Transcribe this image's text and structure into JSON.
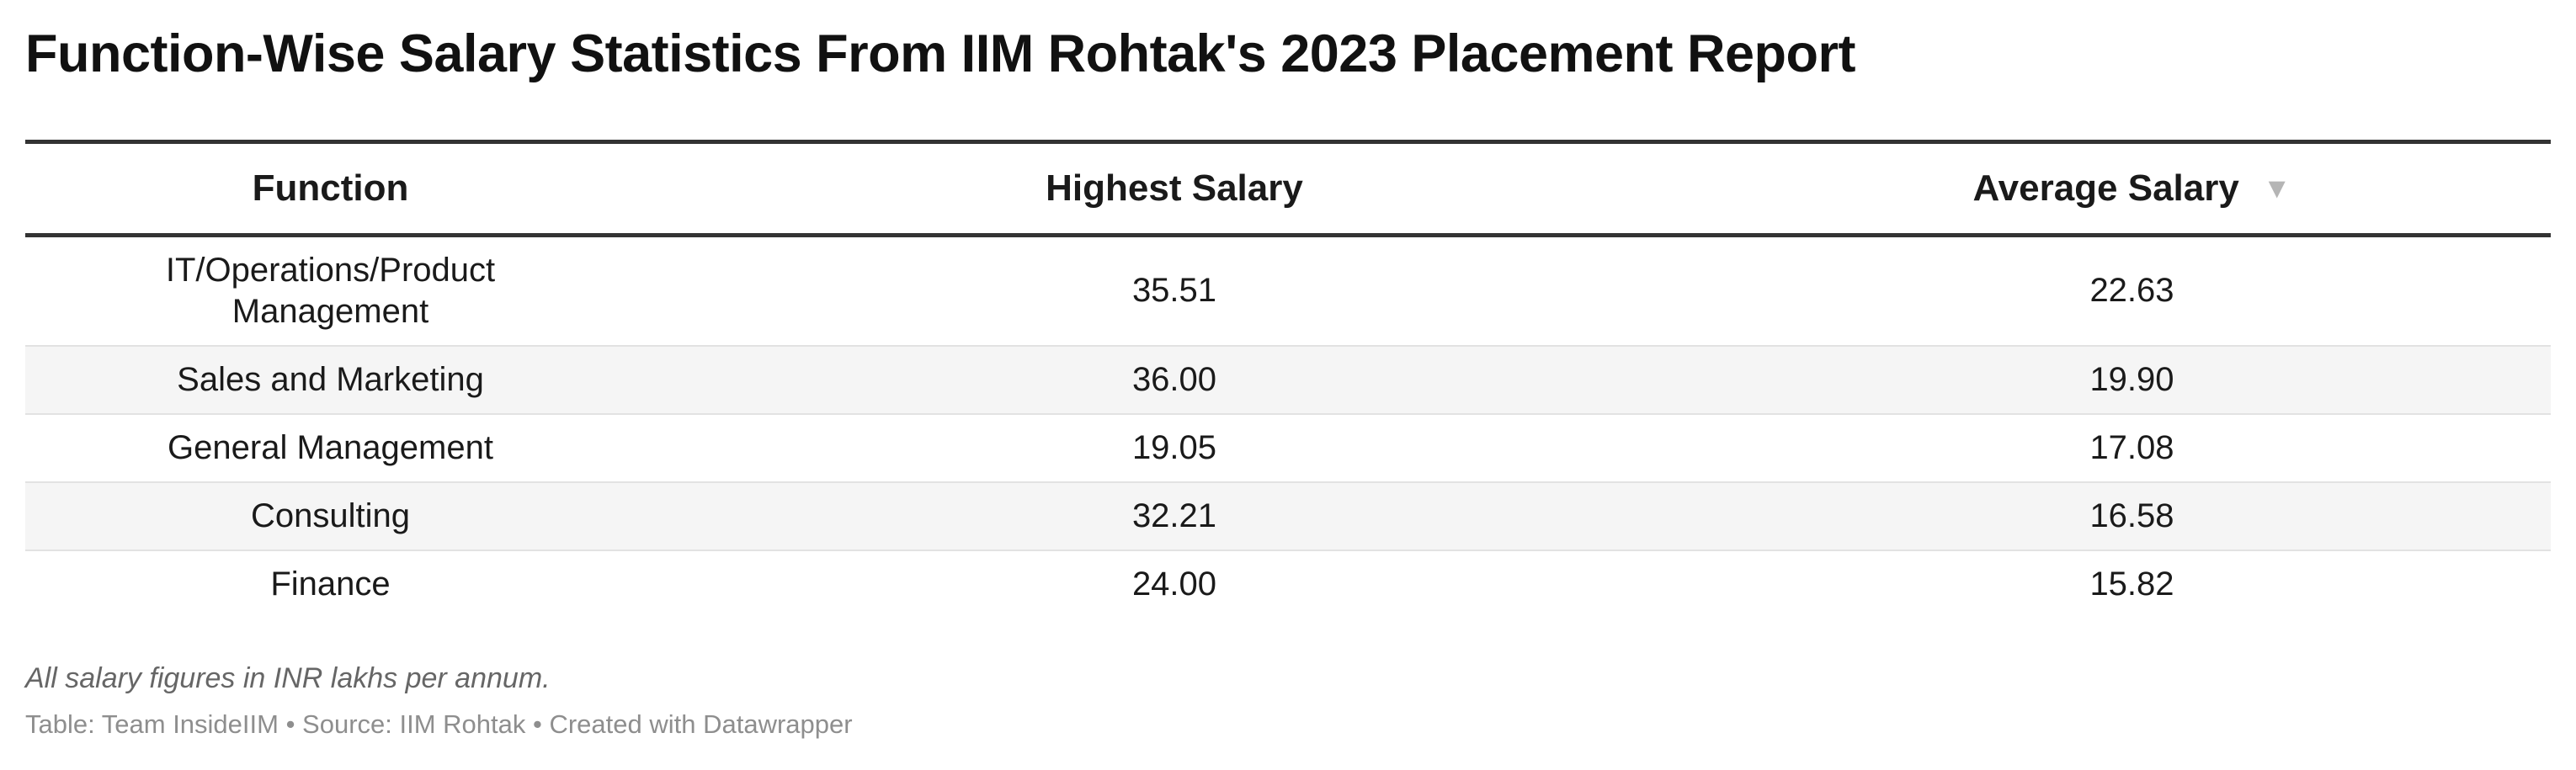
{
  "chart_data": {
    "type": "table",
    "title": "Function-Wise Salary Statistics From IIM Rohtak's 2023 Placement Report",
    "columns": [
      "Function",
      "Highest Salary",
      "Average Salary"
    ],
    "sort_indicator": "▼",
    "sorted_column": "Average Salary",
    "rows": [
      {
        "function": "IT/Operations/Product Management",
        "highest": "35.51",
        "average": "22.63"
      },
      {
        "function": "Sales and Marketing",
        "highest": "36.00",
        "average": "19.90"
      },
      {
        "function": "General Management",
        "highest": "19.05",
        "average": "17.08"
      },
      {
        "function": "Consulting",
        "highest": "32.21",
        "average": "16.58"
      },
      {
        "function": "Finance",
        "highest": "24.00",
        "average": "15.82"
      }
    ],
    "note": "All salary figures in INR lakhs per annum.",
    "source": "Table: Team InsideIIM • Source: IIM Rohtak • Created with Datawrapper"
  }
}
